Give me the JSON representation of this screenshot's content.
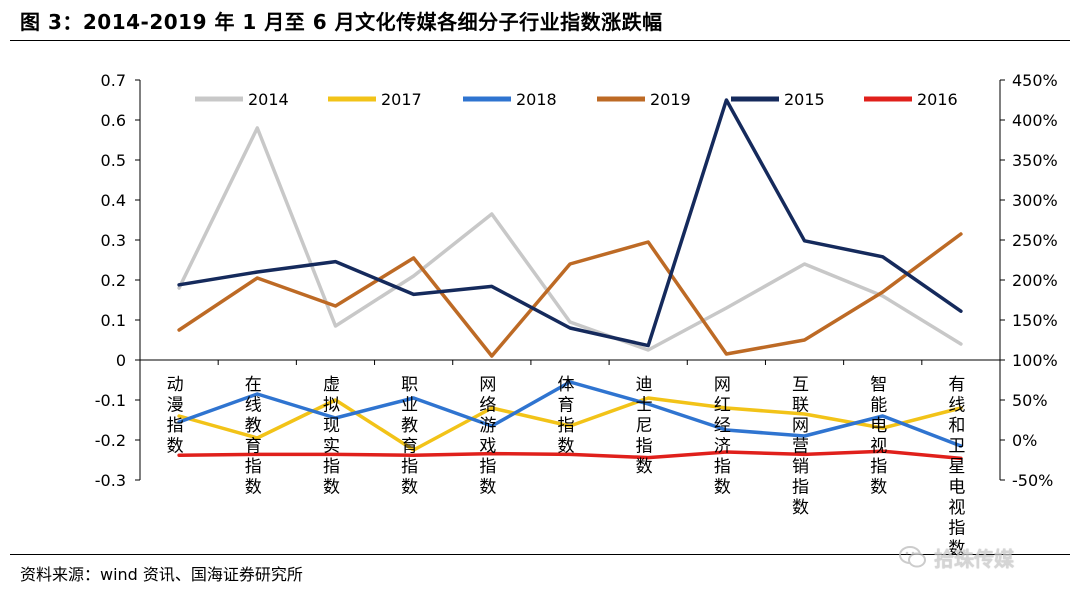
{
  "header": {
    "title": "图 3：2014-2019 年 1 月至 6 月文化传媒各细分子行业指数涨跌幅"
  },
  "footer": {
    "source": "资料来源：wind 资讯、国海证券研究所",
    "watermark": "拾珠传媒",
    "watermark_icon": "wechat-icon"
  },
  "chart_data": {
    "type": "line",
    "categories": [
      "动漫指数",
      "在线教育指数",
      "虚拟现实指数",
      "职业教育指数",
      "网络游戏指数",
      "体育指数",
      "迪士尼指数",
      "网红经济指数",
      "互联网营销指数",
      "智能电视指数",
      "有线和卫星电视指数"
    ],
    "left_axis": {
      "ylim": [
        -0.3,
        0.7
      ],
      "ticks": [
        -0.3,
        -0.2,
        -0.1,
        0,
        0.1,
        0.2,
        0.3,
        0.4,
        0.5,
        0.6,
        0.7
      ],
      "tick_labels": [
        "-0.3",
        "-0.2",
        "-0.1",
        "0",
        "0.1",
        "0.2",
        "0.3",
        "0.4",
        "0.5",
        "0.6",
        "0.7"
      ]
    },
    "right_axis": {
      "ylim": [
        -50,
        450
      ],
      "ticks": [
        -50,
        0,
        50,
        100,
        150,
        200,
        250,
        300,
        350,
        400,
        450
      ],
      "tick_labels": [
        "-50%",
        "0%",
        "50%",
        "100%",
        "150%",
        "200%",
        "250%",
        "300%",
        "350%",
        "400%",
        "450%"
      ]
    },
    "legend": {
      "position": "top",
      "entries": [
        "2014",
        "2017",
        "2018",
        "2019",
        "2015",
        "2016"
      ]
    },
    "grid": false,
    "series": [
      {
        "name": "2014",
        "axis": "left",
        "color": "#c8c8c8",
        "values": [
          0.18,
          0.58,
          0.085,
          0.21,
          0.365,
          0.095,
          0.025,
          0.13,
          0.24,
          0.16,
          0.04
        ]
      },
      {
        "name": "2017",
        "axis": "left",
        "color": "#f2c318",
        "values": [
          -0.14,
          -0.195,
          -0.1,
          -0.225,
          -0.12,
          -0.165,
          -0.095,
          -0.12,
          -0.135,
          -0.17,
          -0.12
        ]
      },
      {
        "name": "2018",
        "axis": "left",
        "color": "#2f74d0",
        "values": [
          -0.155,
          -0.085,
          -0.145,
          -0.095,
          -0.165,
          -0.055,
          -0.11,
          -0.175,
          -0.19,
          -0.14,
          -0.215
        ]
      },
      {
        "name": "2019",
        "axis": "left",
        "color": "#bd6a25",
        "values": [
          0.075,
          0.205,
          0.135,
          0.255,
          0.01,
          0.24,
          0.295,
          0.015,
          0.05,
          0.17,
          0.315
        ]
      },
      {
        "name": "2015",
        "axis": "right",
        "color": "#152a5c",
        "values": [
          194,
          210,
          223,
          182,
          192,
          140,
          118,
          425,
          249,
          229,
          161
        ]
      },
      {
        "name": "2016",
        "axis": "right",
        "color": "#e0201b",
        "values": [
          -19,
          -18,
          -18,
          -19,
          -17,
          -18,
          -22,
          -15,
          -18,
          -14,
          -23
        ]
      }
    ]
  }
}
